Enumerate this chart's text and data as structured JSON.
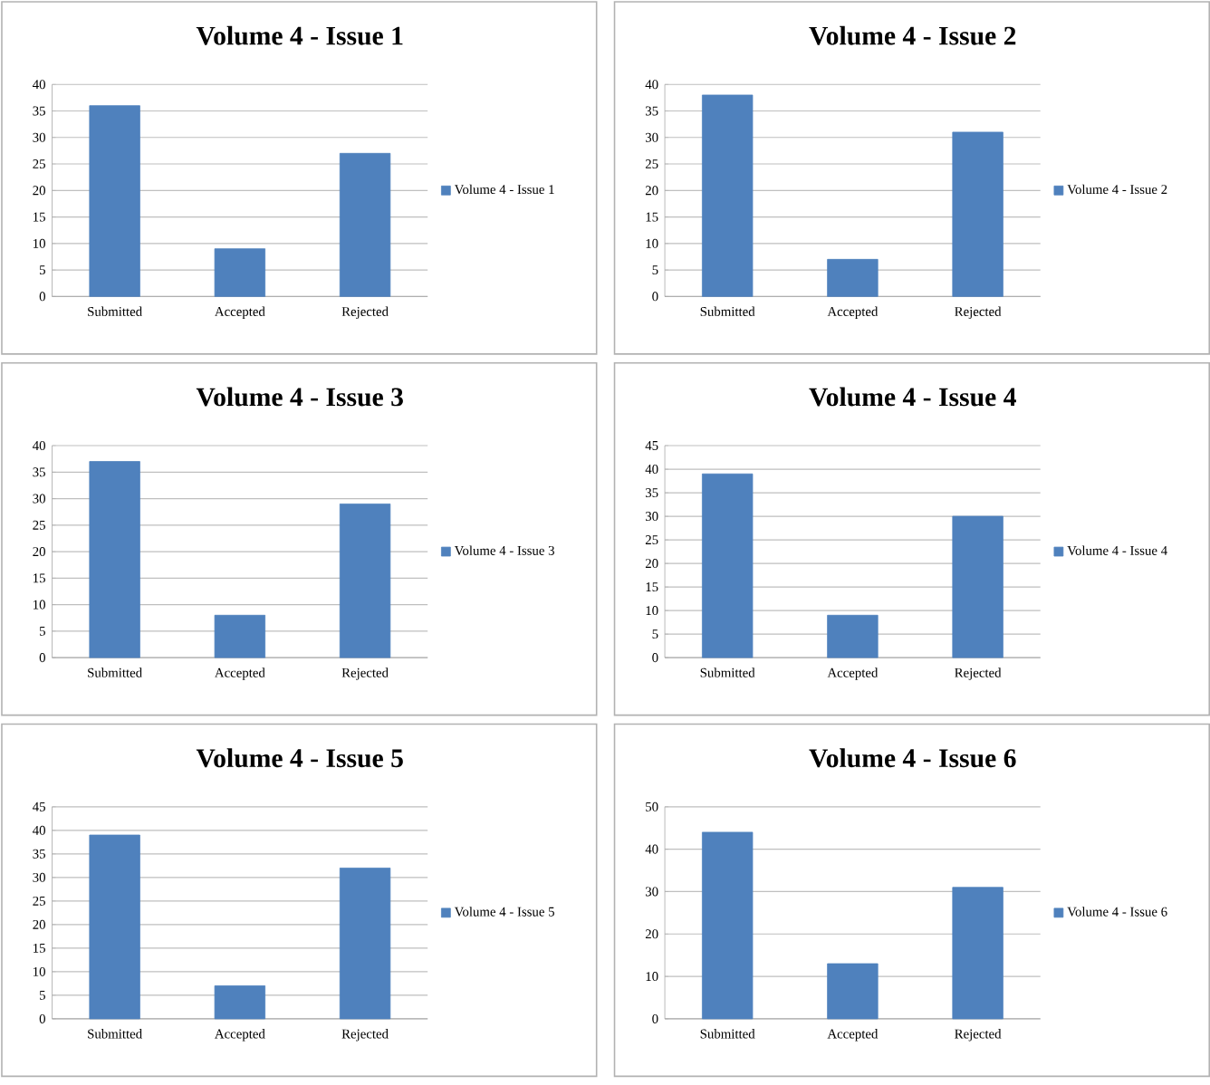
{
  "chart_data": [
    {
      "type": "bar",
      "title": "Volume 4 - Issue 1",
      "categories": [
        "Submitted",
        "Accepted",
        "Rejected"
      ],
      "series": [
        {
          "name": "Volume 4 - Issue 1",
          "color": "#4f81bd",
          "values": [
            36,
            9,
            27
          ]
        }
      ],
      "ylim": [
        0,
        40
      ],
      "yticks": [
        0,
        5,
        10,
        15,
        20,
        25,
        30,
        35,
        40
      ],
      "grid": "y",
      "legend": "right"
    },
    {
      "type": "bar",
      "title": "Volume 4 - Issue 2",
      "categories": [
        "Submitted",
        "Accepted",
        "Rejected"
      ],
      "series": [
        {
          "name": "Volume 4 - Issue 2",
          "color": "#4f81bd",
          "values": [
            38,
            7,
            31
          ]
        }
      ],
      "ylim": [
        0,
        40
      ],
      "yticks": [
        0,
        5,
        10,
        15,
        20,
        25,
        30,
        35,
        40
      ],
      "grid": "y",
      "legend": "right"
    },
    {
      "type": "bar",
      "title": "Volume 4 - Issue 3",
      "categories": [
        "Submitted",
        "Accepted",
        "Rejected"
      ],
      "series": [
        {
          "name": "Volume 4 - Issue 3",
          "color": "#4f81bd",
          "values": [
            37,
            8,
            29
          ]
        }
      ],
      "ylim": [
        0,
        40
      ],
      "yticks": [
        0,
        5,
        10,
        15,
        20,
        25,
        30,
        35,
        40
      ],
      "grid": "y",
      "legend": "right"
    },
    {
      "type": "bar",
      "title": "Volume 4 - Issue 4",
      "categories": [
        "Submitted",
        "Accepted",
        "Rejected"
      ],
      "series": [
        {
          "name": "Volume 4 - Issue 4",
          "color": "#4f81bd",
          "values": [
            39,
            9,
            30
          ]
        }
      ],
      "ylim": [
        0,
        45
      ],
      "yticks": [
        0,
        5,
        10,
        15,
        20,
        25,
        30,
        35,
        40,
        45
      ],
      "grid": "y",
      "legend": "right"
    },
    {
      "type": "bar",
      "title": "Volume 4 - Issue 5",
      "categories": [
        "Submitted",
        "Accepted",
        "Rejected"
      ],
      "series": [
        {
          "name": "Volume 4 - Issue 5",
          "color": "#4f81bd",
          "values": [
            39,
            7,
            32
          ]
        }
      ],
      "ylim": [
        0,
        45
      ],
      "yticks": [
        0,
        5,
        10,
        15,
        20,
        25,
        30,
        35,
        40,
        45
      ],
      "grid": "y",
      "legend": "right"
    },
    {
      "type": "bar",
      "title": "Volume 4 - Issue 6",
      "categories": [
        "Submitted",
        "Accepted",
        "Rejected"
      ],
      "series": [
        {
          "name": "Volume 4 - Issue 6",
          "color": "#4f81bd",
          "values": [
            44,
            13,
            31
          ]
        }
      ],
      "ylim": [
        0,
        50
      ],
      "yticks": [
        0,
        10,
        20,
        30,
        40,
        50
      ],
      "grid": "y",
      "legend": "right"
    }
  ]
}
